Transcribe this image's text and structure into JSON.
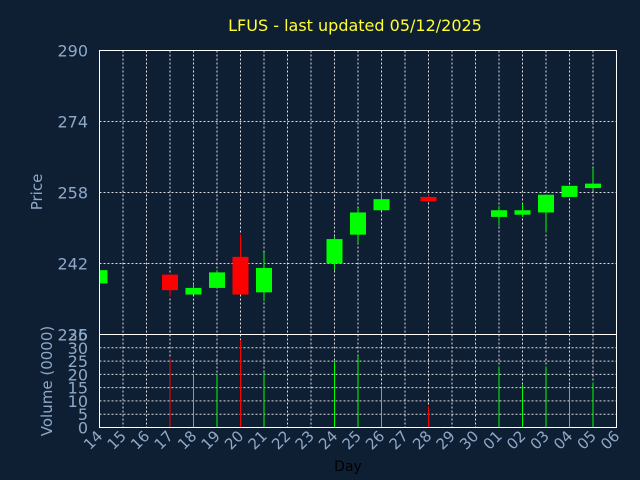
{
  "chart_data": {
    "type": "candlestick",
    "title": "LFUS - last updated 05/12/2025",
    "price_axis": {
      "label": "Price",
      "ylim": [
        226,
        290
      ],
      "ticks": [
        226,
        242,
        258,
        274,
        290
      ]
    },
    "volume_axis": {
      "label": "Volume (0000)",
      "ylim": [
        0,
        35
      ],
      "ticks": [
        0,
        5,
        10,
        15,
        20,
        25,
        30,
        35
      ]
    },
    "xlabel": "Day",
    "day_labels": [
      "14",
      "15",
      "16",
      "17",
      "18",
      "19",
      "20",
      "21",
      "22",
      "23",
      "24",
      "25",
      "26",
      "27",
      "28",
      "29",
      "30",
      "01",
      "02",
      "03",
      "04",
      "05",
      "06"
    ],
    "colors": {
      "up": "#00ff00",
      "down": "#ff0000",
      "background": "#0f1f33",
      "title": "#ffff33",
      "axis_text": "#8ea9c8"
    },
    "grid": true,
    "candles": [
      {
        "day": "14",
        "open": 237.5,
        "close": 240.5,
        "high": 240.5,
        "low": 237.5,
        "volume": 0
      },
      {
        "day": "17",
        "open": 239.5,
        "close": 236.0,
        "high": 239.5,
        "low": 234.5,
        "volume": 26
      },
      {
        "day": "18",
        "open": 235.0,
        "close": 236.5,
        "high": 237.5,
        "low": 235.0,
        "volume": 20
      },
      {
        "day": "19",
        "open": 236.5,
        "close": 240.0,
        "high": 240.5,
        "low": 236.5,
        "volume": 20
      },
      {
        "day": "20",
        "open": 243.5,
        "close": 235.0,
        "high": 248.5,
        "low": 235.0,
        "volume": 33
      },
      {
        "day": "21",
        "open": 235.5,
        "close": 241.0,
        "high": 244.5,
        "low": 233.5,
        "volume": 21
      },
      {
        "day": "24",
        "open": 242.0,
        "close": 247.5,
        "high": 248.0,
        "low": 240.5,
        "volume": 25
      },
      {
        "day": "25",
        "open": 248.5,
        "close": 253.5,
        "high": 254.5,
        "low": 246.5,
        "volume": 27
      },
      {
        "day": "26",
        "open": 254.0,
        "close": 256.5,
        "high": 258.5,
        "low": 254.0,
        "volume": 15
      },
      {
        "day": "28",
        "open": 257.0,
        "close": 256.0,
        "high": 257.5,
        "low": 256.0,
        "volume": 8
      },
      {
        "day": "01",
        "open": 252.5,
        "close": 254.0,
        "high": 255.0,
        "low": 250.5,
        "volume": 23
      },
      {
        "day": "02",
        "open": 253.0,
        "close": 254.0,
        "high": 255.5,
        "low": 252.5,
        "volume": 16
      },
      {
        "day": "03",
        "open": 253.5,
        "close": 257.5,
        "high": 257.5,
        "low": 249.0,
        "volume": 23
      },
      {
        "day": "04",
        "open": 257.0,
        "close": 259.5,
        "high": 259.5,
        "low": 257.0,
        "volume": 16
      },
      {
        "day": "05",
        "open": 259.0,
        "close": 260.0,
        "high": 263.5,
        "low": 258.5,
        "volume": 17
      }
    ]
  }
}
